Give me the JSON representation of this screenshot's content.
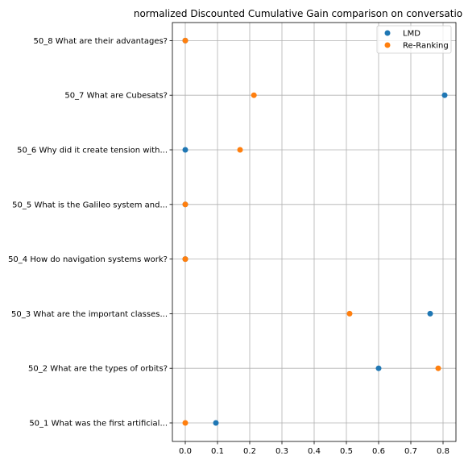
{
  "chart_data": {
    "type": "scatter",
    "title": "normalized Discounted Cumulative Gain comparison on conversatio",
    "xlabel": "",
    "ylabel": "",
    "xlim": [
      -0.04,
      0.84
    ],
    "xticks": [
      "0.0",
      "0.1",
      "0.2",
      "0.3",
      "0.4",
      "0.5",
      "0.6",
      "0.7",
      "0.8"
    ],
    "grid": true,
    "legend_position": "top-right",
    "categories": [
      "50_1 What was the first artificial...",
      "50_2 What are the types of orbits?",
      "50_3 What are the important classes...",
      "50_4 How do navigation systems work?",
      "50_5 What is the Galileo system and...",
      "50_6 Why did it create tension with...",
      "50_7 What are Cubesats?",
      "50_8 What are their advantages?"
    ],
    "series": [
      {
        "name": "LMD",
        "color": "#1f77b4",
        "values": [
          0.095,
          0.6,
          0.76,
          0.0,
          0.0,
          0.0,
          0.805,
          0.0
        ]
      },
      {
        "name": "Re-Ranking",
        "color": "#ff7f0e",
        "values": [
          0.0,
          0.785,
          0.51,
          0.0,
          0.0,
          0.17,
          0.213,
          0.0
        ]
      }
    ]
  }
}
